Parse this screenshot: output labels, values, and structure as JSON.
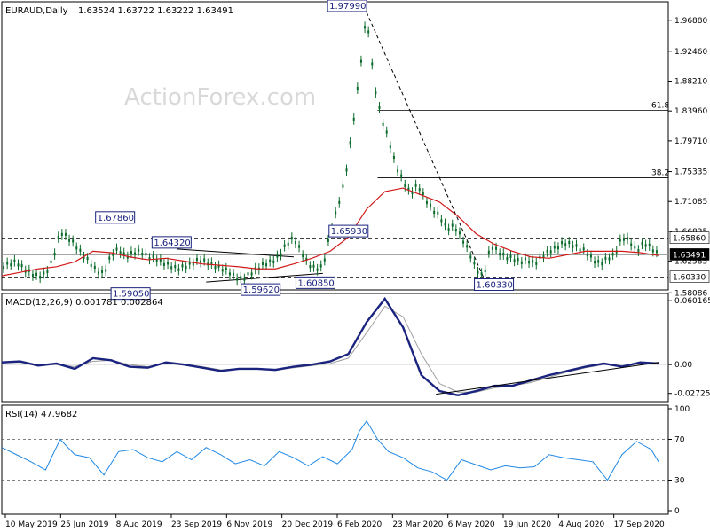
{
  "header": {
    "symbol": "EURAUD,Daily",
    "ohlc": "1.63524 1.63722 1.63222 1.63491"
  },
  "watermark": "ActionForex.com",
  "colors": {
    "candle": "#0b6b2a",
    "ma": "#d11a1a",
    "macd": "#1a237e",
    "signal": "#9e9e9e",
    "rsi": "#1e88e5",
    "level": "#000000",
    "label_border": "#1a237e",
    "current_price_bg": "#000000"
  },
  "chart_data": [
    {
      "type": "line",
      "title": "EURAUD,Daily",
      "ylim": [
        1.585,
        1.995
      ],
      "y_ticks": [
        "1.96880",
        "1.92460",
        "1.88210",
        "1.83960",
        "1.79710",
        "1.75335",
        "1.71085",
        "1.66835",
        "1.62585",
        "1.58086"
      ],
      "x_labels": [
        "10 May 2019",
        "25 Jun 2019",
        "8 Aug 2019",
        "23 Sep 2019",
        "6 Nov 2019",
        "20 Dec 2019",
        "6 Feb 2020",
        "23 Mar 2020",
        "6 May 2020",
        "19 Jun 2020",
        "4 Aug 2020",
        "17 Sep 2020"
      ],
      "series": [
        {
          "name": "",
          "kind": "price",
          "x": [
            0,
            4,
            8,
            12,
            16,
            20,
            24,
            28,
            32,
            36,
            40,
            44,
            48,
            52,
            56,
            60,
            64,
            68,
            72,
            76,
            80,
            84,
            88,
            92,
            96,
            100,
            104,
            108,
            112,
            116,
            120,
            124,
            128,
            132,
            136,
            140,
            144,
            148,
            152,
            156,
            160,
            164,
            168,
            172,
            176,
            180,
            184,
            188,
            192,
            196,
            200,
            204,
            208,
            212,
            216,
            220,
            224,
            228,
            232,
            236,
            240,
            244,
            248,
            252,
            256,
            260,
            264,
            268,
            272,
            276,
            280,
            284,
            288,
            292,
            296,
            300,
            304,
            308,
            312,
            316,
            320,
            324,
            328,
            332,
            336,
            340,
            344,
            348,
            352,
            356,
            360
          ],
          "values": [
            1.618,
            1.622,
            1.625,
            1.615,
            1.609,
            1.604,
            1.608,
            1.628,
            1.668,
            1.66,
            1.65,
            1.636,
            1.625,
            1.612,
            1.608,
            1.635,
            1.643,
            1.632,
            1.638,
            1.64,
            1.632,
            1.63,
            1.624,
            1.62,
            1.615,
            1.618,
            1.622,
            1.628,
            1.625,
            1.62,
            1.616,
            1.612,
            1.603,
            1.6,
            1.608,
            1.615,
            1.622,
            1.625,
            1.633,
            1.65,
            1.659,
            1.64,
            1.622,
            1.615,
            1.618,
            1.665,
            1.702,
            1.74,
            1.81,
            1.89,
            1.979,
            1.88,
            1.83,
            1.8,
            1.762,
            1.74,
            1.722,
            1.735,
            1.715,
            1.7,
            1.69,
            1.672,
            1.676,
            1.66,
            1.64,
            1.615,
            1.603,
            1.648,
            1.64,
            1.632,
            1.63,
            1.625,
            1.628,
            1.622,
            1.632,
            1.64,
            1.645,
            1.652,
            1.65,
            1.645,
            1.64,
            1.628,
            1.622,
            1.63,
            1.635,
            1.66,
            1.655,
            1.64,
            1.652,
            1.645,
            1.635
          ]
        },
        {
          "name": "",
          "kind": "moving-average",
          "x": [
            0,
            10,
            20,
            30,
            40,
            50,
            60,
            70,
            80,
            90,
            100,
            110,
            120,
            130,
            140,
            150,
            160,
            170,
            180,
            190,
            200,
            210,
            220,
            230,
            240,
            250,
            260,
            270,
            280,
            290,
            300,
            310,
            320,
            330,
            340,
            350,
            360
          ],
          "values": [
            1.605,
            1.61,
            1.615,
            1.618,
            1.625,
            1.64,
            1.638,
            1.632,
            1.628,
            1.63,
            1.626,
            1.622,
            1.62,
            1.618,
            1.615,
            1.615,
            1.622,
            1.63,
            1.64,
            1.66,
            1.7,
            1.725,
            1.73,
            1.72,
            1.71,
            1.69,
            1.665,
            1.65,
            1.64,
            1.632,
            1.63,
            1.635,
            1.64,
            1.64,
            1.64,
            1.638,
            1.634
          ]
        }
      ],
      "annotations": [
        "1.97990",
        "1.67860",
        "1.65930",
        "1.64320",
        "1.60850",
        "1.59620",
        "1.59050",
        "1.60330",
        "61.8",
        "38.2",
        "1.65860",
        "1.63491",
        "1.60330"
      ]
    },
    {
      "type": "line",
      "title": "MACD(12,26,9) 0.001781 0.002864",
      "ylim": [
        -0.035,
        0.067
      ],
      "y_ticks": [
        "0.060165",
        "0.00",
        "-0.02725"
      ],
      "series": [
        {
          "name": "",
          "kind": "macd",
          "x": [
            0,
            10,
            20,
            30,
            40,
            50,
            60,
            70,
            80,
            90,
            100,
            110,
            120,
            130,
            140,
            150,
            160,
            170,
            180,
            190,
            200,
            210,
            220,
            230,
            240,
            250,
            260,
            270,
            280,
            290,
            300,
            310,
            320,
            330,
            340,
            350,
            360
          ],
          "values": [
            0.002,
            0.003,
            -0.001,
            0.001,
            -0.004,
            0.006,
            0.004,
            -0.002,
            -0.003,
            0.002,
            0.0,
            -0.003,
            -0.006,
            -0.004,
            -0.004,
            -0.005,
            -0.002,
            0.0,
            0.003,
            0.01,
            0.04,
            0.062,
            0.035,
            -0.01,
            -0.025,
            -0.029,
            -0.025,
            -0.02,
            -0.02,
            -0.015,
            -0.01,
            -0.006,
            -0.002,
            0.001,
            -0.002,
            0.002,
            0.001
          ]
        },
        {
          "name": "",
          "kind": "signal",
          "x": [
            0,
            10,
            20,
            30,
            40,
            50,
            60,
            70,
            80,
            90,
            100,
            110,
            120,
            130,
            140,
            150,
            160,
            170,
            180,
            190,
            200,
            210,
            220,
            230,
            240,
            250,
            260,
            270,
            280,
            290,
            300,
            310,
            320,
            330,
            340,
            350,
            360
          ],
          "values": [
            0.002,
            0.002,
            0.0,
            0.0,
            -0.002,
            0.003,
            0.004,
            0.0,
            -0.002,
            0.001,
            0.0,
            -0.002,
            -0.005,
            -0.004,
            -0.004,
            -0.005,
            -0.003,
            -0.001,
            0.001,
            0.006,
            0.03,
            0.055,
            0.045,
            0.01,
            -0.018,
            -0.026,
            -0.026,
            -0.022,
            -0.02,
            -0.017,
            -0.012,
            -0.007,
            -0.003,
            0.0,
            -0.001,
            0.001,
            0.002
          ]
        }
      ],
      "annotations": [
        "trendline"
      ]
    },
    {
      "type": "line",
      "title": "RSI(14) 47.9682",
      "ylim": [
        0,
        100
      ],
      "y_ticks": [
        "100",
        "70",
        "30",
        "0"
      ],
      "series": [
        {
          "name": "",
          "kind": "rsi",
          "x": [
            0,
            8,
            16,
            24,
            32,
            40,
            48,
            56,
            64,
            72,
            80,
            88,
            96,
            104,
            112,
            120,
            128,
            136,
            144,
            152,
            160,
            168,
            176,
            184,
            192,
            196,
            200,
            206,
            212,
            220,
            228,
            236,
            244,
            252,
            260,
            268,
            276,
            284,
            292,
            300,
            308,
            316,
            324,
            332,
            340,
            348,
            356,
            360
          ],
          "values": [
            62,
            55,
            48,
            40,
            70,
            55,
            52,
            35,
            58,
            60,
            52,
            48,
            58,
            50,
            62,
            55,
            46,
            50,
            44,
            58,
            52,
            44,
            53,
            46,
            60,
            78,
            88,
            70,
            58,
            52,
            42,
            38,
            30,
            50,
            45,
            40,
            44,
            42,
            43,
            55,
            52,
            50,
            48,
            30,
            55,
            68,
            60,
            48
          ]
        }
      ]
    }
  ]
}
